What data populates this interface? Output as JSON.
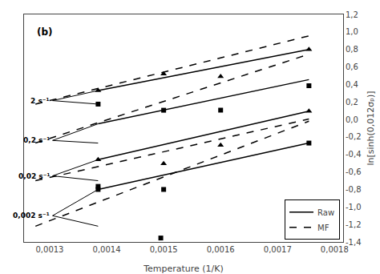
{
  "chart_data": {
    "type": "line",
    "xlabel": "Temperature (1/K)",
    "ylabel": "ln[sinh(0,012σₚ)]",
    "xlim": [
      0.001255,
      0.001815
    ],
    "ylim": [
      -1.4,
      1.2
    ],
    "xticks": [
      {
        "value": 0.0013,
        "label": "0,0013"
      },
      {
        "value": 0.0014,
        "label": "0,0014"
      },
      {
        "value": 0.0015,
        "label": "0,0015"
      },
      {
        "value": 0.0016,
        "label": "0,0016"
      },
      {
        "value": 0.0017,
        "label": "0,0017"
      },
      {
        "value": 0.0018,
        "label": "0,0018"
      }
    ],
    "yticks": [
      {
        "value": -1.4,
        "label": "-1,4"
      },
      {
        "value": -1.2,
        "label": "-1,2"
      },
      {
        "value": -1.0,
        "label": "-1,0"
      },
      {
        "value": -0.8,
        "label": "-0,8"
      },
      {
        "value": -0.6,
        "label": "-0,6"
      },
      {
        "value": -0.4,
        "label": "-0,4"
      },
      {
        "value": -0.2,
        "label": "-0,2"
      },
      {
        "value": 0.0,
        "label": "0,0"
      },
      {
        "value": 0.2,
        "label": "0,2"
      },
      {
        "value": 0.4,
        "label": "0,4"
      },
      {
        "value": 0.6,
        "label": "0,6"
      },
      {
        "value": 0.8,
        "label": "0,8"
      },
      {
        "value": 1.0,
        "label": "1,0"
      },
      {
        "value": 1.2,
        "label": "1,2"
      }
    ],
    "grid": false,
    "legend": "lower right",
    "series": [
      {
        "name": "Raw",
        "type": "line",
        "line_style": "solid",
        "color": "#000000",
        "x": [
          0.001385,
          0.001755,
          null,
          0.001385,
          0.001755,
          null,
          0.001385,
          0.001755,
          null,
          0.001385,
          0.001755
        ],
        "values": [
          0.33,
          0.8,
          null,
          -0.05,
          0.455,
          null,
          -0.46,
          0.095,
          null,
          -0.8,
          -0.27
        ]
      },
      {
        "name": "MF",
        "type": "line",
        "line_style": "dashed",
        "color": "#000000",
        "x": [
          0.001275,
          0.001755,
          null,
          0.001275,
          0.001755,
          null,
          0.001275,
          0.001755,
          null,
          0.001275,
          0.001755
        ],
        "values": [
          0.175,
          0.955,
          null,
          -0.27,
          0.745,
          null,
          -0.7,
          0.005,
          null,
          -1.22,
          -0.02
        ]
      },
      {
        "type": "scatter",
        "marker": "triangle-up",
        "color": "#000000",
        "x": [
          0.001385,
          0.0015,
          0.0016,
          0.001755
        ],
        "values": [
          0.33,
          0.52,
          0.49,
          0.8
        ]
      },
      {
        "type": "scatter",
        "marker": "square",
        "color": "#000000",
        "x": [
          0.001385,
          0.0015,
          0.0016,
          0.001755
        ],
        "values": [
          0.175,
          0.105,
          0.106,
          0.385
        ]
      },
      {
        "type": "scatter",
        "marker": "triangle-up",
        "color": "#000000",
        "x": [
          0.001385,
          0.0015,
          0.0016,
          0.001755
        ],
        "values": [
          -0.46,
          -0.505,
          -0.295,
          0.095
        ]
      },
      {
        "type": "scatter",
        "marker": "square",
        "color": "#000000",
        "x": [
          0.001385,
          0.0015,
          0.001755
        ],
        "values": [
          -0.8,
          -0.8,
          -0.27
        ]
      },
      {
        "type": "scatter",
        "marker": "square",
        "color": "#000000",
        "x": [
          0.001385,
          0.001495
        ],
        "values": [
          -0.765,
          -1.355
        ]
      }
    ],
    "annotations": [
      {
        "text": "2 s⁻¹",
        "x": 0.001305,
        "y": 0.215,
        "arrows_to": [
          [
            0.001385,
            0.33
          ],
          [
            0.001385,
            0.175
          ]
        ]
      },
      {
        "text": "0,2 s⁻¹",
        "x": 0.001305,
        "y": -0.24,
        "arrows_to": [
          [
            0.001385,
            -0.05
          ],
          [
            0.001385,
            -0.27
          ]
        ]
      },
      {
        "text": "0,02 s⁻¹",
        "x": 0.001305,
        "y": -0.645,
        "arrows_to": [
          [
            0.001385,
            -0.46
          ],
          [
            0.001385,
            -0.7
          ]
        ]
      },
      {
        "text": "0,002 s⁻¹",
        "x": 0.001305,
        "y": -1.1,
        "arrows_to": [
          [
            0.001385,
            -0.8
          ],
          [
            0.001385,
            -1.22
          ]
        ]
      },
      {
        "text": "(b)",
        "x": 0.001275,
        "y": 1.08
      }
    ]
  }
}
